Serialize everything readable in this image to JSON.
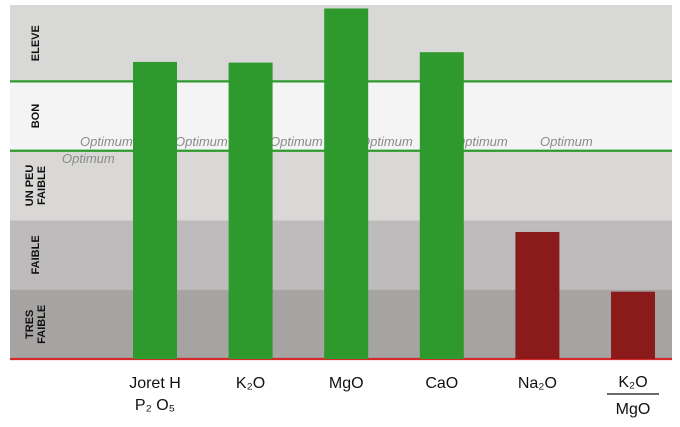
{
  "chart_data": {
    "type": "bar",
    "categories": [
      {
        "id": "joret",
        "lines": [
          "Joret H",
          "P₂ O₅"
        ]
      },
      {
        "id": "k2o",
        "lines": [
          "K₂O"
        ]
      },
      {
        "id": "mgo",
        "lines": [
          "MgO"
        ]
      },
      {
        "id": "cao",
        "lines": [
          "CaO"
        ]
      },
      {
        "id": "na2o",
        "lines": [
          "Na₂O"
        ]
      },
      {
        "id": "k2o_mgo",
        "lines": [
          "K₂O",
          "MgO"
        ],
        "fraction": true
      }
    ],
    "values": [
      4.28,
      4.27,
      5.05,
      4.42,
      1.83,
      0.97
    ],
    "bar_colors": [
      "#2e9a2e",
      "#2e9a2e",
      "#2e9a2e",
      "#2e9a2e",
      "#8b1b1b",
      "#8b1b1b"
    ],
    "ylim": [
      0,
      5.1
    ],
    "bands": [
      {
        "label": "TRES FAIBLE",
        "from": 0,
        "to": 1,
        "color": "#a6a3a3"
      },
      {
        "label": "FAIBLE",
        "from": 1,
        "to": 2,
        "color": "#bdbbbb"
      },
      {
        "label": "UN PEU FAIBLE",
        "from": 2,
        "to": 3,
        "color": "#d9d8d7"
      },
      {
        "label": "BON",
        "from": 3,
        "to": 4,
        "color": "#f4f4f4"
      },
      {
        "label": "ELEVE",
        "from": 4,
        "to": 5.1,
        "color": "#d8d8d6"
      }
    ],
    "lines": [
      {
        "value": 0,
        "color": "#d42a2a"
      },
      {
        "value": 3,
        "color": "#2e9a2e"
      },
      {
        "value": 4,
        "color": "#2e9a2e"
      }
    ],
    "optimum_text": "Optimum"
  }
}
